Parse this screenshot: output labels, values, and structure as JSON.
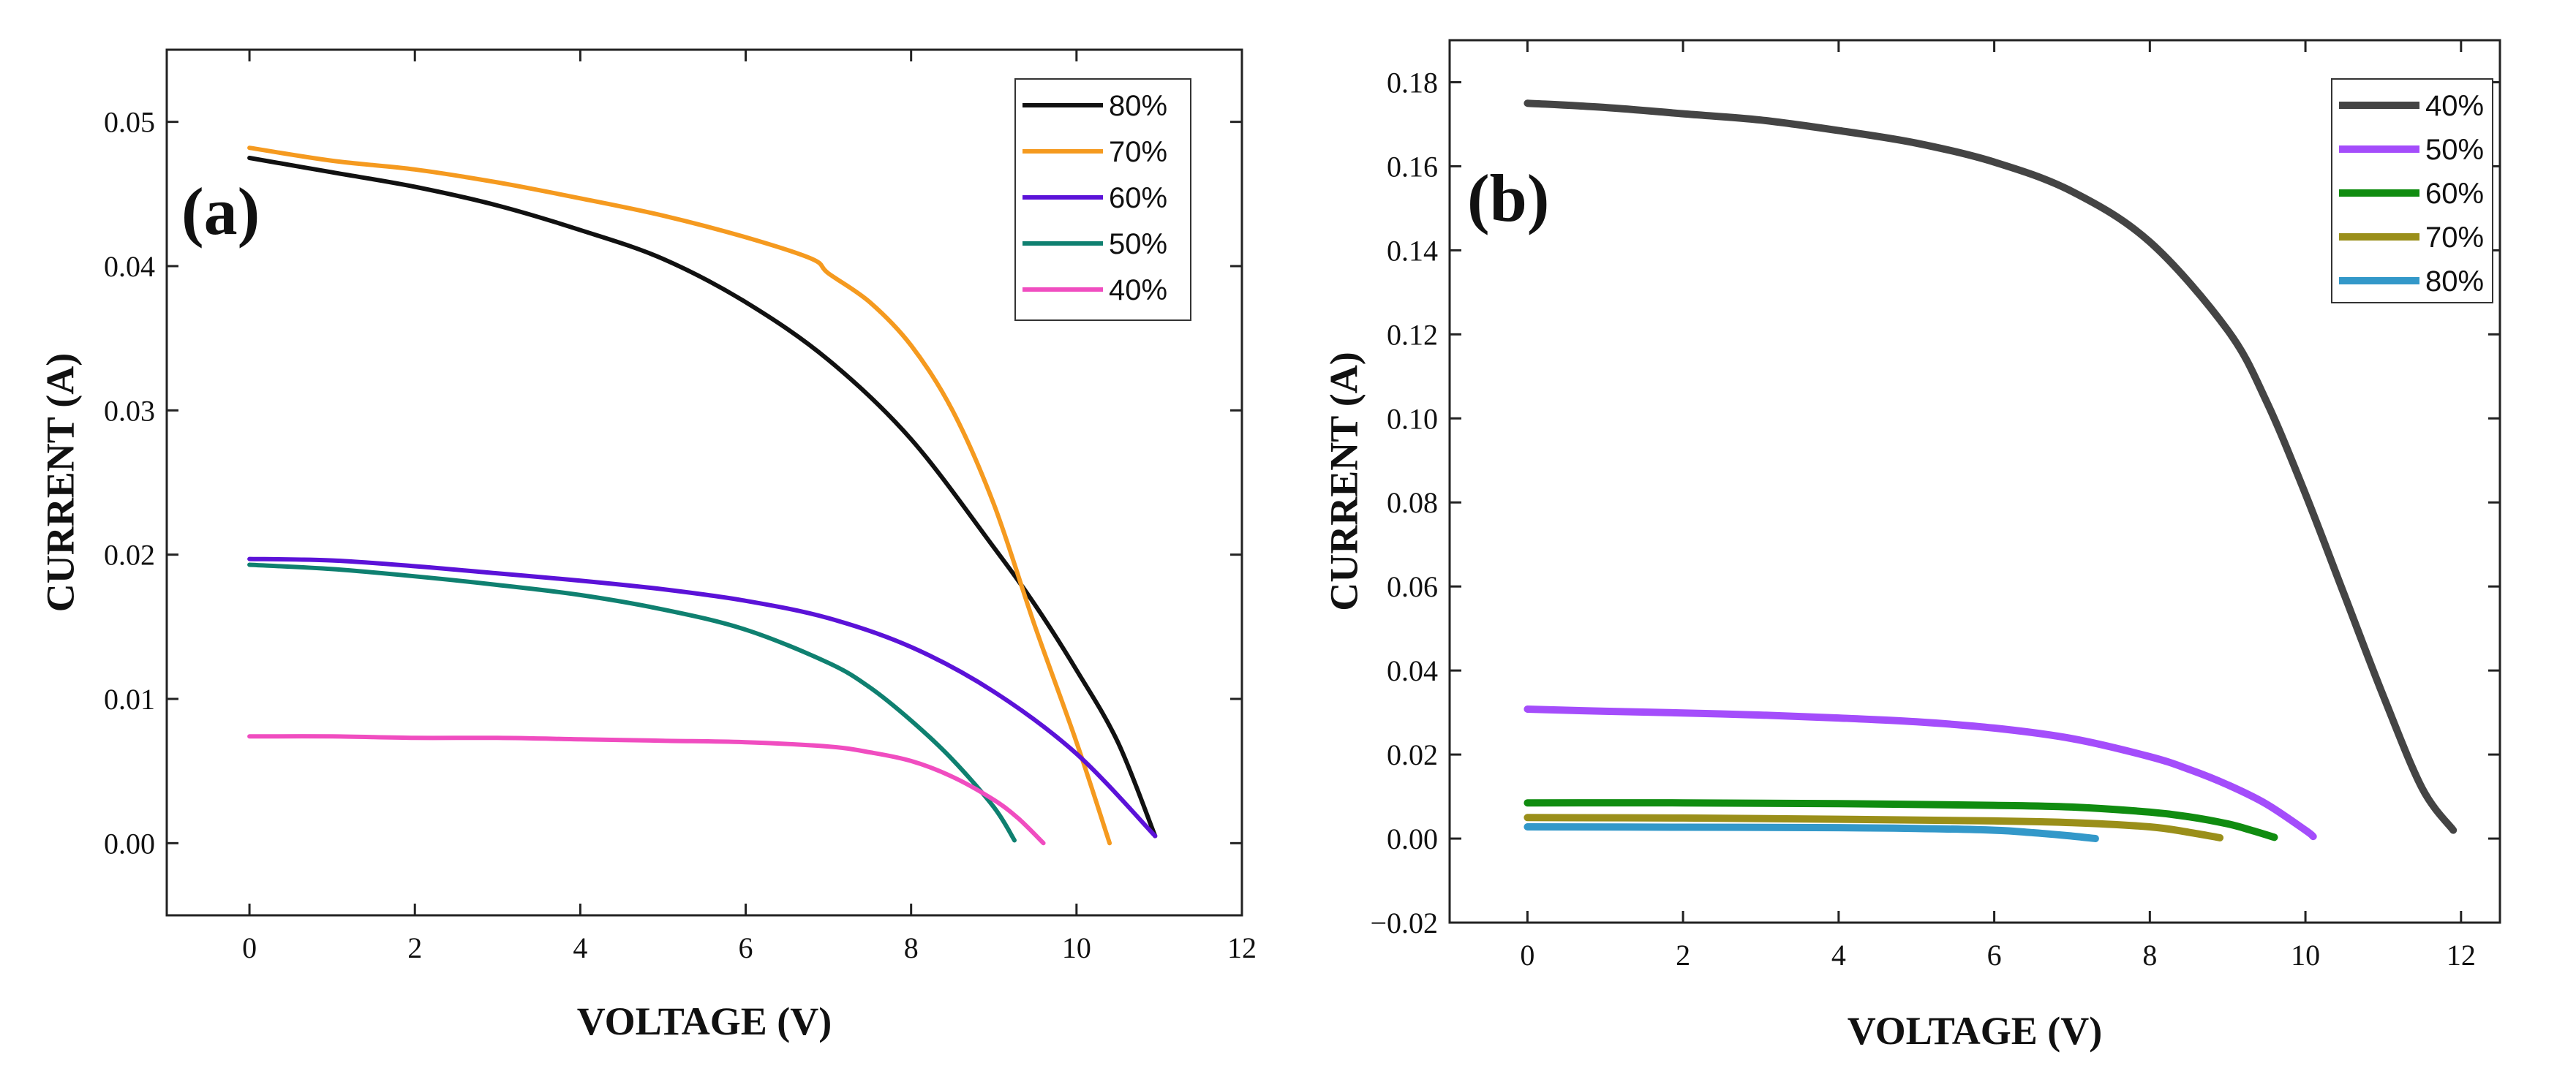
{
  "chart_data": [
    {
      "type": "line",
      "panel_label": "(a)",
      "xlabel": "VOLTAGE (V)",
      "ylabel": "CURRENT (A)",
      "xlim": [
        -1,
        12
      ],
      "ylim": [
        -0.005,
        0.055
      ],
      "xticks": [
        0,
        2,
        4,
        6,
        8,
        10,
        12
      ],
      "yticks": [
        0.0,
        0.01,
        0.02,
        0.03,
        0.04,
        0.05
      ],
      "ytick_labels": [
        "0.00",
        "0.01",
        "0.02",
        "0.03",
        "0.04",
        "0.05"
      ],
      "legend_position": "top-right",
      "series": [
        {
          "name": "80%",
          "color": "#111111",
          "x": [
            0,
            1,
            2,
            3,
            4,
            5,
            6,
            7,
            8,
            9,
            9.5,
            10,
            10.5,
            10.95
          ],
          "y": [
            0.0475,
            0.0465,
            0.0455,
            0.0442,
            0.0425,
            0.0405,
            0.0375,
            0.0335,
            0.028,
            0.0205,
            0.0165,
            0.012,
            0.007,
            0.0005
          ]
        },
        {
          "name": "70%",
          "color": "#f59a1f",
          "x": [
            0,
            1,
            2,
            3,
            4,
            5,
            6,
            6.8,
            7,
            7.5,
            8,
            8.5,
            9,
            9.5,
            10,
            10.4
          ],
          "y": [
            0.0482,
            0.0473,
            0.0467,
            0.0458,
            0.0447,
            0.0435,
            0.042,
            0.0405,
            0.0395,
            0.0375,
            0.0345,
            0.03,
            0.0235,
            0.015,
            0.007,
            0.0
          ]
        },
        {
          "name": "60%",
          "color": "#5b12d8",
          "x": [
            0,
            1,
            2,
            3,
            4,
            5,
            6,
            7,
            8,
            9,
            10,
            10.95
          ],
          "y": [
            0.0197,
            0.0196,
            0.0192,
            0.0187,
            0.0182,
            0.0176,
            0.0168,
            0.0156,
            0.0136,
            0.0105,
            0.0062,
            0.0005
          ]
        },
        {
          "name": "50%",
          "color": "#0f8070",
          "x": [
            0,
            1,
            2,
            3,
            4,
            5,
            6,
            7,
            7.5,
            8,
            8.5,
            9,
            9.25
          ],
          "y": [
            0.0193,
            0.019,
            0.0185,
            0.0179,
            0.0172,
            0.0162,
            0.0148,
            0.0125,
            0.0108,
            0.0085,
            0.0058,
            0.0025,
            0.0002
          ]
        },
        {
          "name": "40%",
          "color": "#f04dc0",
          "x": [
            0,
            1,
            2,
            3,
            4,
            5,
            6,
            7,
            7.5,
            8,
            8.5,
            9,
            9.3,
            9.6
          ],
          "y": [
            0.0074,
            0.0074,
            0.0073,
            0.0073,
            0.0072,
            0.0071,
            0.007,
            0.0067,
            0.0063,
            0.0057,
            0.0046,
            0.003,
            0.0017,
            0.0
          ]
        }
      ]
    },
    {
      "type": "line",
      "panel_label": "(b)",
      "xlabel": "VOLTAGE (V)",
      "ylabel": "CURRENT (A)",
      "xlim": [
        -1,
        12.5
      ],
      "ylim": [
        -0.02,
        0.19
      ],
      "xticks": [
        0,
        2,
        4,
        6,
        8,
        10,
        12
      ],
      "yticks": [
        -0.02,
        0.0,
        0.02,
        0.04,
        0.06,
        0.08,
        0.1,
        0.12,
        0.14,
        0.16,
        0.18
      ],
      "ytick_labels": [
        "−0.02",
        "0.00",
        "0.02",
        "0.04",
        "0.06",
        "0.08",
        "0.10",
        "0.12",
        "0.14",
        "0.16",
        "0.18"
      ],
      "legend_position": "top-right",
      "series": [
        {
          "name": "40%",
          "color": "#444444",
          "x": [
            0,
            1,
            2,
            3,
            4,
            5,
            6,
            7,
            8,
            9,
            9.5,
            10,
            10.5,
            11,
            11.5,
            11.9
          ],
          "y": [
            0.175,
            0.174,
            0.1725,
            0.171,
            0.1685,
            0.1655,
            0.161,
            0.154,
            0.142,
            0.121,
            0.104,
            0.082,
            0.058,
            0.034,
            0.012,
            0.002
          ]
        },
        {
          "name": "50%",
          "color": "#a44dfb",
          "x": [
            0,
            1,
            2,
            3,
            4,
            5,
            6,
            7,
            8,
            8.5,
            9,
            9.5,
            10,
            10.1
          ],
          "y": [
            0.0308,
            0.0303,
            0.0299,
            0.0294,
            0.0287,
            0.0278,
            0.0263,
            0.0238,
            0.0195,
            0.0165,
            0.0128,
            0.0082,
            0.002,
            0.0005
          ]
        },
        {
          "name": "60%",
          "color": "#108c10",
          "x": [
            0,
            2,
            4,
            6,
            7,
            8,
            8.5,
            9,
            9.3,
            9.6
          ],
          "y": [
            0.0085,
            0.0085,
            0.0083,
            0.0079,
            0.0075,
            0.0063,
            0.0052,
            0.0035,
            0.002,
            0.0003
          ]
        },
        {
          "name": "70%",
          "color": "#9a8f1a",
          "x": [
            0,
            2,
            4,
            6,
            7,
            8,
            8.5,
            8.9
          ],
          "y": [
            0.005,
            0.0049,
            0.0046,
            0.0042,
            0.0038,
            0.0028,
            0.0015,
            0.0002
          ]
        },
        {
          "name": "80%",
          "color": "#3398c9",
          "x": [
            0,
            2,
            4,
            5,
            6,
            6.5,
            7,
            7.3
          ],
          "y": [
            0.0028,
            0.0027,
            0.0026,
            0.0024,
            0.002,
            0.0014,
            0.0006,
            0.0
          ]
        }
      ]
    }
  ]
}
